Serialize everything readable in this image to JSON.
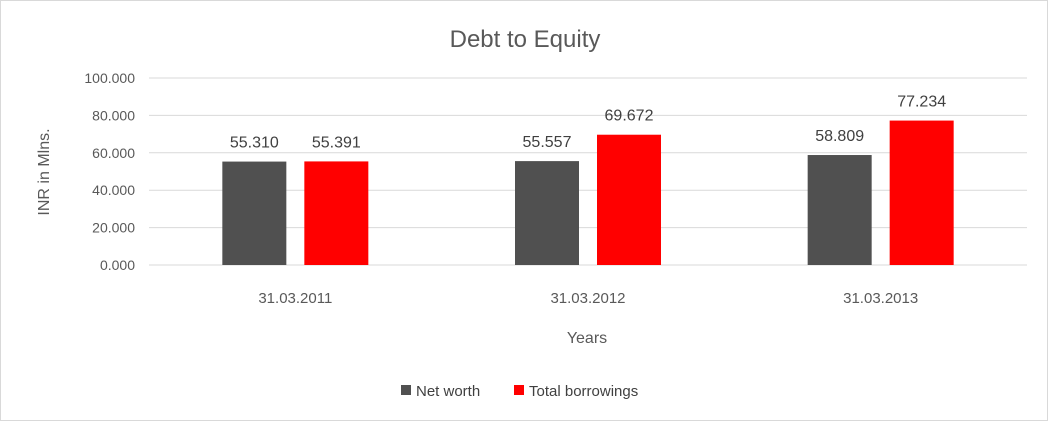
{
  "chart_data": {
    "type": "bar",
    "title": "Debt to Equity",
    "xlabel": "Years",
    "ylabel": "INR in Mlns.",
    "categories": [
      "31.03.2011",
      "31.03.2012",
      "31.03.2013"
    ],
    "series": [
      {
        "name": "Net worth",
        "values": [
          55.31,
          55.557,
          58.809
        ],
        "labels": [
          "55.310",
          "55.557",
          "58.809"
        ],
        "color": "#505050"
      },
      {
        "name": "Total borrowings",
        "values": [
          55.391,
          69.672,
          77.234
        ],
        "labels": [
          "55.391",
          "69.672",
          "77.234"
        ],
        "color": "#ff0000"
      }
    ],
    "yticks": [
      "0.000",
      "20.000",
      "40.000",
      "60.000",
      "80.000",
      "100.000"
    ],
    "ylim": [
      0,
      100
    ],
    "grid": true,
    "legend_position": "bottom"
  }
}
